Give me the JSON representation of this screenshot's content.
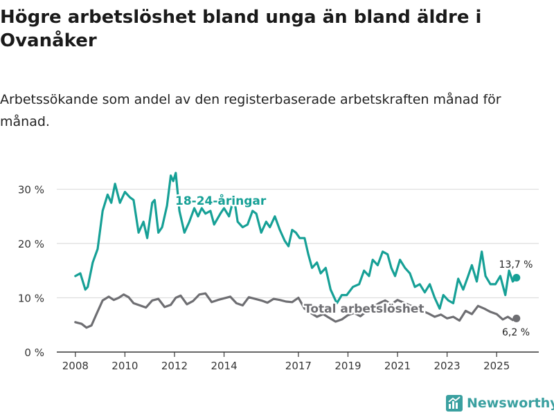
{
  "title": "Högre arbetslöshet bland unga än bland äldre i Ovanåker",
  "subtitle": "Arbetssökande som andel av den registerbaserade arbetskraften månad för månad.",
  "brand": {
    "name": "Newsworthy",
    "logo_icon": "newsworthy-logo-icon"
  },
  "colors": {
    "youth": "#16a096",
    "total": "#6e6e72",
    "grid": "#dddddd",
    "axis": "#333333",
    "brand": "#3aa0a0"
  },
  "chart_data": {
    "type": "line",
    "title": "Högre arbetslöshet bland unga än bland äldre i Ovanåker",
    "subtitle": "Arbetssökande som andel av den registerbaserade arbetskraften månad för månad.",
    "xlabel": "",
    "ylabel": "",
    "x_range": [
      2007.25,
      2026.7
    ],
    "ylim": [
      0,
      33
    ],
    "grid": true,
    "x_ticks": [
      2008,
      2010,
      2012,
      2014,
      2017,
      2019,
      2021,
      2023,
      2025
    ],
    "x_tick_labels": [
      "2008",
      "2010",
      "2012",
      "2014",
      "2017",
      "2019",
      "2021",
      "2023",
      "2025"
    ],
    "y_ticks": [
      0,
      10,
      20,
      30
    ],
    "y_tick_labels": [
      "0 %",
      "10 %",
      "20 %",
      "30 %"
    ],
    "series": [
      {
        "name": "18-24-åringar",
        "label": "18-24-åringar",
        "end_label": "13,7 %",
        "x": [
          2008.0,
          2008.2,
          2008.4,
          2008.5,
          2008.7,
          2008.9,
          2009.1,
          2009.3,
          2009.45,
          2009.6,
          2009.8,
          2010.0,
          2010.2,
          2010.35,
          2010.55,
          2010.75,
          2010.9,
          2011.1,
          2011.2,
          2011.35,
          2011.5,
          2011.7,
          2011.85,
          2011.95,
          2012.05,
          2012.2,
          2012.4,
          2012.6,
          2012.8,
          2012.95,
          2013.1,
          2013.25,
          2013.45,
          2013.6,
          2013.85,
          2014.0,
          2014.2,
          2014.4,
          2014.55,
          2014.75,
          2014.95,
          2015.15,
          2015.3,
          2015.5,
          2015.7,
          2015.85,
          2016.05,
          2016.25,
          2016.45,
          2016.6,
          2016.75,
          2016.9,
          2017.05,
          2017.25,
          2017.4,
          2017.55,
          2017.75,
          2017.9,
          2018.1,
          2018.3,
          2018.55,
          2018.75,
          2018.95,
          2019.2,
          2019.45,
          2019.65,
          2019.85,
          2020.0,
          2020.2,
          2020.4,
          2020.6,
          2020.75,
          2020.9,
          2021.1,
          2021.3,
          2021.5,
          2021.7,
          2021.9,
          2022.1,
          2022.3,
          2022.5,
          2022.7,
          2022.85,
          2023.05,
          2023.25,
          2023.45,
          2023.65,
          2023.85,
          2024.0,
          2024.2,
          2024.4,
          2024.55,
          2024.75,
          2024.95,
          2025.15,
          2025.35,
          2025.5,
          2025.65,
          2025.8
        ],
        "values": [
          14.0,
          14.5,
          11.5,
          12.0,
          16.5,
          19.0,
          26.0,
          29.0,
          27.5,
          31.0,
          27.5,
          29.5,
          28.5,
          28.0,
          22.0,
          24.0,
          21.0,
          27.5,
          28.0,
          22.0,
          23.0,
          27.0,
          32.5,
          31.5,
          33.0,
          26.0,
          22.0,
          24.0,
          26.5,
          25.0,
          26.5,
          25.5,
          26.0,
          23.5,
          25.5,
          26.5,
          25.0,
          28.5,
          24.0,
          23.0,
          23.5,
          26.0,
          25.5,
          22.0,
          24.0,
          23.0,
          25.0,
          22.5,
          20.5,
          19.5,
          22.5,
          22.0,
          21.0,
          21.0,
          18.0,
          15.5,
          16.5,
          14.5,
          15.5,
          11.5,
          9.0,
          10.5,
          10.5,
          12.0,
          12.5,
          15.0,
          14.0,
          17.0,
          16.0,
          18.5,
          18.0,
          15.5,
          14.0,
          17.0,
          15.5,
          14.5,
          12.0,
          12.5,
          11.0,
          12.5,
          10.0,
          8.0,
          10.5,
          9.5,
          9.0,
          13.5,
          11.5,
          14.0,
          16.0,
          13.0,
          18.5,
          14.0,
          12.5,
          12.5,
          14.0,
          10.5,
          15.0,
          13.0,
          13.7
        ]
      },
      {
        "name": "Total arbetslöshet",
        "label": "Total arbetslöshet",
        "end_label": "6,2 %",
        "x": [
          2008.0,
          2008.25,
          2008.45,
          2008.65,
          2008.85,
          2009.1,
          2009.35,
          2009.55,
          2009.75,
          2009.95,
          2010.15,
          2010.35,
          2010.6,
          2010.85,
          2011.1,
          2011.35,
          2011.6,
          2011.85,
          2012.05,
          2012.25,
          2012.5,
          2012.75,
          2013.0,
          2013.25,
          2013.5,
          2013.75,
          2014.0,
          2014.25,
          2014.5,
          2014.75,
          2015.0,
          2015.25,
          2015.5,
          2015.75,
          2016.0,
          2016.25,
          2016.5,
          2016.75,
          2017.0,
          2017.25,
          2017.5,
          2017.75,
          2018.0,
          2018.25,
          2018.5,
          2018.75,
          2019.0,
          2019.25,
          2019.5,
          2019.75,
          2020.0,
          2020.25,
          2020.5,
          2020.75,
          2021.0,
          2021.25,
          2021.5,
          2021.75,
          2022.0,
          2022.25,
          2022.5,
          2022.75,
          2023.0,
          2023.25,
          2023.5,
          2023.75,
          2024.0,
          2024.25,
          2024.5,
          2024.75,
          2025.0,
          2025.25,
          2025.45,
          2025.65,
          2025.8
        ],
        "values": [
          5.5,
          5.2,
          4.5,
          4.9,
          7.0,
          9.5,
          10.2,
          9.6,
          10.0,
          10.6,
          10.1,
          9.0,
          8.6,
          8.2,
          9.5,
          9.8,
          8.3,
          8.7,
          10.0,
          10.4,
          8.8,
          9.4,
          10.6,
          10.8,
          9.2,
          9.6,
          9.9,
          10.2,
          9.0,
          8.6,
          10.1,
          9.8,
          9.5,
          9.1,
          9.8,
          9.6,
          9.3,
          9.2,
          10.0,
          8.0,
          7.2,
          6.5,
          7.0,
          6.3,
          5.6,
          6.0,
          6.8,
          7.2,
          6.6,
          7.5,
          8.2,
          9.0,
          9.5,
          8.8,
          9.6,
          9.1,
          8.6,
          8.2,
          7.6,
          7.1,
          6.5,
          6.9,
          6.2,
          6.5,
          5.8,
          7.6,
          7.0,
          8.5,
          8.0,
          7.4,
          7.0,
          6.0,
          6.5,
          5.9,
          6.2
        ]
      }
    ]
  }
}
